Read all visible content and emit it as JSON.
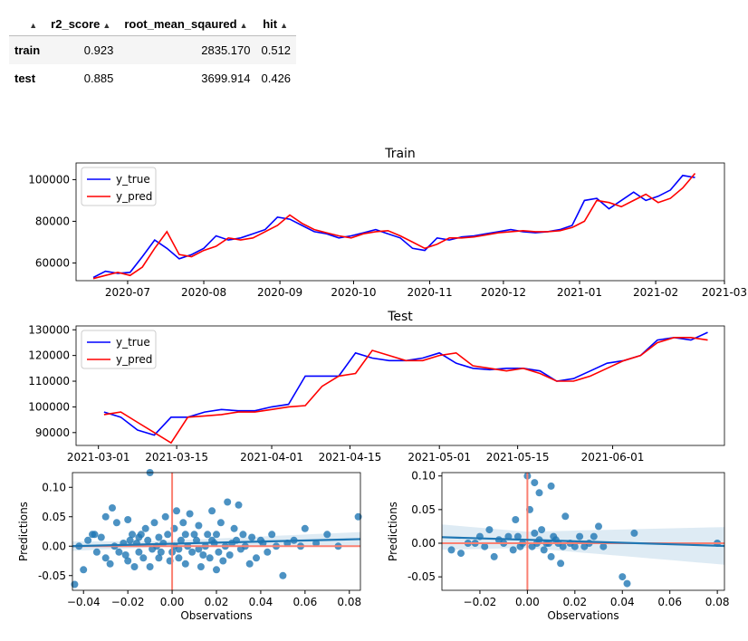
{
  "table": {
    "columns": [
      "r2_score",
      "root_mean_sqaured",
      "hit"
    ],
    "rows": [
      {
        "label": "train",
        "values": [
          "0.923",
          "2835.170",
          "0.512"
        ]
      },
      {
        "label": "test",
        "values": [
          "0.885",
          "3699.914",
          "0.426"
        ]
      }
    ]
  },
  "colors": {
    "y_true": "#0000ff",
    "y_pred": "#ff0000",
    "scatter": "#1f77b4",
    "zero_line": "#fa8072",
    "ci": "#1f77b4"
  },
  "chart_data": [
    {
      "type": "line",
      "title": "Train",
      "xlabel": "",
      "ylabel": "",
      "legend": "top-left",
      "xlim": [
        "2020-06-10",
        "2021-03-01"
      ],
      "ylim": [
        51500,
        108000
      ],
      "yticks": [
        60000,
        80000,
        100000
      ],
      "xticks": [
        "2020-07",
        "2020-08",
        "2020-09",
        "2020-10",
        "2020-11",
        "2020-12",
        "2021-01",
        "2021-02",
        "2021-03"
      ],
      "xtick_dates": [
        "2020-07-01",
        "2020-08-01",
        "2020-09-01",
        "2020-10-01",
        "2020-11-01",
        "2020-12-01",
        "2021-01-01",
        "2021-02-01",
        "2021-03-01"
      ],
      "x": [
        "2020-06-17",
        "2020-06-22",
        "2020-06-27",
        "2020-07-02",
        "2020-07-07",
        "2020-07-12",
        "2020-07-17",
        "2020-07-22",
        "2020-07-27",
        "2020-08-01",
        "2020-08-06",
        "2020-08-11",
        "2020-08-16",
        "2020-08-21",
        "2020-08-26",
        "2020-08-31",
        "2020-09-05",
        "2020-09-10",
        "2020-09-15",
        "2020-09-20",
        "2020-09-25",
        "2020-09-30",
        "2020-10-05",
        "2020-10-10",
        "2020-10-15",
        "2020-10-20",
        "2020-10-25",
        "2020-10-30",
        "2020-11-04",
        "2020-11-09",
        "2020-11-14",
        "2020-11-19",
        "2020-11-24",
        "2020-11-29",
        "2020-12-04",
        "2020-12-09",
        "2020-12-14",
        "2020-12-19",
        "2020-12-24",
        "2020-12-29",
        "2021-01-03",
        "2021-01-08",
        "2021-01-13",
        "2021-01-18",
        "2021-01-23",
        "2021-01-28",
        "2021-02-02",
        "2021-02-07",
        "2021-02-12",
        "2021-02-17"
      ],
      "series": [
        {
          "name": "y_true",
          "values": [
            53000,
            56000,
            55000,
            55500,
            63000,
            71000,
            67000,
            62000,
            64000,
            67000,
            73000,
            71000,
            72000,
            74000,
            76000,
            82000,
            81000,
            78000,
            75000,
            74000,
            72000,
            73000,
            74500,
            76000,
            74000,
            72000,
            67000,
            66000,
            72000,
            71000,
            72500,
            73000,
            74000,
            75000,
            76000,
            75000,
            74500,
            75000,
            76000,
            78000,
            90000,
            91000,
            86000,
            90000,
            94000,
            90000,
            92000,
            95000,
            102000,
            101000
          ]
        },
        {
          "name": "y_pred",
          "values": [
            52500,
            54000,
            55500,
            54000,
            58000,
            67000,
            75000,
            64000,
            63000,
            66000,
            68000,
            72000,
            71000,
            72000,
            75000,
            78000,
            83000,
            79000,
            76000,
            74500,
            73000,
            72000,
            74000,
            75000,
            75500,
            73000,
            70000,
            67000,
            69000,
            72000,
            72000,
            72500,
            73500,
            74500,
            75000,
            75500,
            75000,
            75000,
            75500,
            77000,
            80000,
            90000,
            89000,
            87000,
            90000,
            93000,
            89000,
            91000,
            96000,
            103000
          ]
        }
      ]
    },
    {
      "type": "line",
      "title": "Test",
      "xlabel": "",
      "ylabel": "",
      "legend": "top-left",
      "xlim": [
        "2021-02-25",
        "2021-06-21"
      ],
      "ylim": [
        85000,
        131500
      ],
      "yticks": [
        90000,
        100000,
        110000,
        120000,
        130000
      ],
      "xticks": [
        "2021-03-01",
        "2021-03-15",
        "2021-04-01",
        "2021-04-15",
        "2021-05-01",
        "2021-05-15",
        "2021-06-01"
      ],
      "x": [
        "2021-03-02",
        "2021-03-05",
        "2021-03-08",
        "2021-03-11",
        "2021-03-14",
        "2021-03-17",
        "2021-03-20",
        "2021-03-23",
        "2021-03-26",
        "2021-03-29",
        "2021-04-01",
        "2021-04-04",
        "2021-04-07",
        "2021-04-10",
        "2021-04-13",
        "2021-04-16",
        "2021-04-19",
        "2021-04-22",
        "2021-04-25",
        "2021-04-28",
        "2021-05-01",
        "2021-05-04",
        "2021-05-07",
        "2021-05-10",
        "2021-05-13",
        "2021-05-16",
        "2021-05-19",
        "2021-05-22",
        "2021-05-25",
        "2021-05-28",
        "2021-05-31",
        "2021-06-03",
        "2021-06-06",
        "2021-06-09",
        "2021-06-12",
        "2021-06-15",
        "2021-06-18"
      ],
      "series": [
        {
          "name": "y_true",
          "values": [
            98000,
            96000,
            91000,
            89000,
            96000,
            96000,
            98000,
            99000,
            98500,
            98500,
            100000,
            101000,
            112000,
            112000,
            112000,
            121000,
            119000,
            118000,
            118000,
            119000,
            121000,
            117000,
            115000,
            114500,
            115000,
            115000,
            114000,
            110000,
            111000,
            114000,
            117000,
            118000,
            120000,
            126000,
            127000,
            126000,
            129000
          ]
        },
        {
          "name": "y_pred",
          "values": [
            97000,
            98000,
            94000,
            90000,
            86000,
            96000,
            96500,
            97000,
            98000,
            98000,
            99000,
            100000,
            100500,
            108000,
            112000,
            113000,
            122000,
            120000,
            118000,
            118000,
            120000,
            121000,
            116000,
            115000,
            114000,
            115000,
            113000,
            110000,
            110000,
            112000,
            115000,
            118000,
            120000,
            125000,
            127000,
            127000,
            126000
          ]
        }
      ]
    },
    {
      "type": "scatter",
      "title": "",
      "xlabel": "Observations",
      "ylabel": "Predictions",
      "xlim": [
        -0.045,
        0.085
      ],
      "ylim": [
        -0.075,
        0.125
      ],
      "xticks": [
        "-0.04",
        "-0.02",
        "0.00",
        "0.02",
        "0.04",
        "0.06",
        "0.08"
      ],
      "yticks": [
        "-0.05",
        "0.00",
        "0.05",
        "0.10"
      ],
      "points": [
        [
          -0.035,
          0.02
        ],
        [
          -0.03,
          0.05
        ],
        [
          -0.025,
          0.04
        ],
        [
          -0.02,
          0.045
        ],
        [
          -0.018,
          0.02
        ],
        [
          -0.015,
          -0.01
        ],
        [
          -0.012,
          0.03
        ],
        [
          -0.01,
          -0.035
        ],
        [
          -0.01,
          0.125
        ],
        [
          -0.008,
          0.04
        ],
        [
          -0.006,
          0.015
        ],
        [
          -0.005,
          -0.01
        ],
        [
          -0.003,
          0.05
        ],
        [
          -0.002,
          0.02
        ],
        [
          0.0,
          -0.01
        ],
        [
          0.001,
          0.03
        ],
        [
          0.002,
          0.06
        ],
        [
          0.003,
          -0.02
        ],
        [
          0.004,
          0.01
        ],
        [
          0.005,
          0.04
        ],
        [
          0.006,
          -0.03
        ],
        [
          0.008,
          0.055
        ],
        [
          0.01,
          0.02
        ],
        [
          0.012,
          0.035
        ],
        [
          0.014,
          -0.015
        ],
        [
          0.016,
          0.02
        ],
        [
          0.018,
          0.06
        ],
        [
          0.02,
          0.02
        ],
        [
          0.02,
          -0.04
        ],
        [
          0.022,
          0.04
        ],
        [
          0.025,
          0.075
        ],
        [
          0.028,
          0.03
        ],
        [
          0.03,
          0.07
        ],
        [
          0.032,
          0.02
        ],
        [
          0.035,
          -0.03
        ],
        [
          0.04,
          0.01
        ],
        [
          0.045,
          0.02
        ],
        [
          0.05,
          -0.05
        ],
        [
          0.055,
          0.01
        ],
        [
          0.06,
          0.03
        ],
        [
          0.07,
          0.02
        ],
        [
          0.084,
          0.05
        ],
        [
          -0.044,
          -0.065
        ],
        [
          -0.042,
          0.0
        ],
        [
          -0.04,
          -0.04
        ],
        [
          -0.038,
          0.01
        ],
        [
          -0.036,
          0.02
        ],
        [
          -0.034,
          -0.01
        ],
        [
          -0.032,
          0.015
        ],
        [
          -0.03,
          -0.02
        ],
        [
          -0.028,
          -0.03
        ],
        [
          -0.027,
          0.065
        ],
        [
          -0.024,
          -0.01
        ],
        [
          -0.022,
          0.005
        ],
        [
          -0.02,
          -0.025
        ],
        [
          -0.019,
          0.01
        ],
        [
          -0.017,
          -0.035
        ],
        [
          -0.016,
          0.005
        ],
        [
          -0.014,
          0.02
        ],
        [
          -0.013,
          -0.02
        ],
        [
          -0.011,
          0.01
        ],
        [
          -0.009,
          -0.005
        ],
        [
          -0.007,
          0.0
        ],
        [
          -0.004,
          0.005
        ],
        [
          -0.001,
          -0.025
        ],
        [
          0.003,
          -0.005
        ],
        [
          0.007,
          0.0
        ],
        [
          0.009,
          -0.01
        ],
        [
          0.011,
          0.01
        ],
        [
          0.013,
          -0.035
        ],
        [
          0.015,
          0.0
        ],
        [
          0.017,
          -0.02
        ],
        [
          0.019,
          0.005
        ],
        [
          0.021,
          -0.01
        ],
        [
          0.024,
          0.0
        ],
        [
          0.026,
          -0.015
        ],
        [
          0.029,
          0.01
        ],
        [
          0.031,
          -0.005
        ],
        [
          0.033,
          0.0
        ],
        [
          0.036,
          0.015
        ],
        [
          0.038,
          -0.02
        ],
        [
          0.041,
          0.005
        ],
        [
          0.043,
          -0.01
        ],
        [
          0.047,
          0.0
        ],
        [
          0.052,
          0.005
        ],
        [
          0.058,
          0.0
        ],
        [
          0.065,
          0.005
        ],
        [
          0.075,
          0.0
        ],
        [
          -0.026,
          0.0
        ],
        [
          -0.021,
          -0.015
        ],
        [
          -0.015,
          0.015
        ],
        [
          -0.006,
          -0.02
        ],
        [
          0.001,
          0.0
        ],
        [
          0.006,
          0.02
        ],
        [
          0.012,
          -0.005
        ],
        [
          0.018,
          0.01
        ],
        [
          0.023,
          -0.025
        ],
        [
          0.027,
          0.005
        ]
      ],
      "regression": {
        "x": [
          -0.045,
          0.085
        ],
        "y": [
          0.0,
          0.012
        ],
        "ci_halfwidth": [
          0.005,
          0.012
        ]
      },
      "reference": {
        "x": 0,
        "y": 0
      }
    },
    {
      "type": "scatter",
      "title": "",
      "xlabel": "Observations",
      "ylabel": "Predictions",
      "xlim": [
        -0.036,
        0.083
      ],
      "ylim": [
        -0.07,
        0.105
      ],
      "xticks": [
        "-0.02",
        "0.00",
        "0.02",
        "0.04",
        "0.06",
        "0.08"
      ],
      "yticks": [
        "-0.05",
        "0.00",
        "0.05",
        "0.10"
      ],
      "points": [
        [
          -0.032,
          -0.01
        ],
        [
          -0.028,
          -0.015
        ],
        [
          -0.022,
          0.0
        ],
        [
          -0.02,
          0.01
        ],
        [
          -0.018,
          -0.005
        ],
        [
          -0.016,
          0.02
        ],
        [
          -0.014,
          -0.02
        ],
        [
          -0.012,
          0.005
        ],
        [
          -0.01,
          0.0
        ],
        [
          -0.008,
          0.01
        ],
        [
          -0.006,
          -0.01
        ],
        [
          -0.005,
          0.035
        ],
        [
          -0.004,
          0.01
        ],
        [
          -0.003,
          -0.005
        ],
        [
          -0.002,
          0.0
        ],
        [
          0.0,
          0.1
        ],
        [
          0.001,
          0.05
        ],
        [
          0.002,
          -0.005
        ],
        [
          0.003,
          0.015
        ],
        [
          0.004,
          0.0
        ],
        [
          0.005,
          0.005
        ],
        [
          0.006,
          0.02
        ],
        [
          0.007,
          -0.01
        ],
        [
          0.008,
          0.0
        ],
        [
          0.009,
          0.0
        ],
        [
          0.01,
          -0.02
        ],
        [
          0.011,
          0.01
        ],
        [
          0.012,
          0.005
        ],
        [
          0.013,
          0.0
        ],
        [
          0.014,
          -0.03
        ],
        [
          0.015,
          -0.005
        ],
        [
          0.016,
          0.04
        ],
        [
          0.018,
          0.0
        ],
        [
          0.02,
          -0.005
        ],
        [
          0.022,
          0.01
        ],
        [
          0.024,
          -0.005
        ],
        [
          0.026,
          0.0
        ],
        [
          0.03,
          0.025
        ],
        [
          0.032,
          -0.005
        ],
        [
          0.04,
          -0.05
        ],
        [
          0.042,
          -0.06
        ],
        [
          0.045,
          0.015
        ],
        [
          0.08,
          0.0
        ],
        [
          0.003,
          0.09
        ],
        [
          0.005,
          0.075
        ],
        [
          0.01,
          0.085
        ],
        [
          -0.025,
          0.0
        ],
        [
          0.028,
          0.01
        ]
      ],
      "regression": {
        "x": [
          -0.036,
          0.083
        ],
        "y": [
          0.009,
          -0.004
        ],
        "ci_halfwidth": [
          0.012,
          0.028
        ]
      },
      "reference": {
        "x": 0,
        "y": 0
      }
    }
  ]
}
